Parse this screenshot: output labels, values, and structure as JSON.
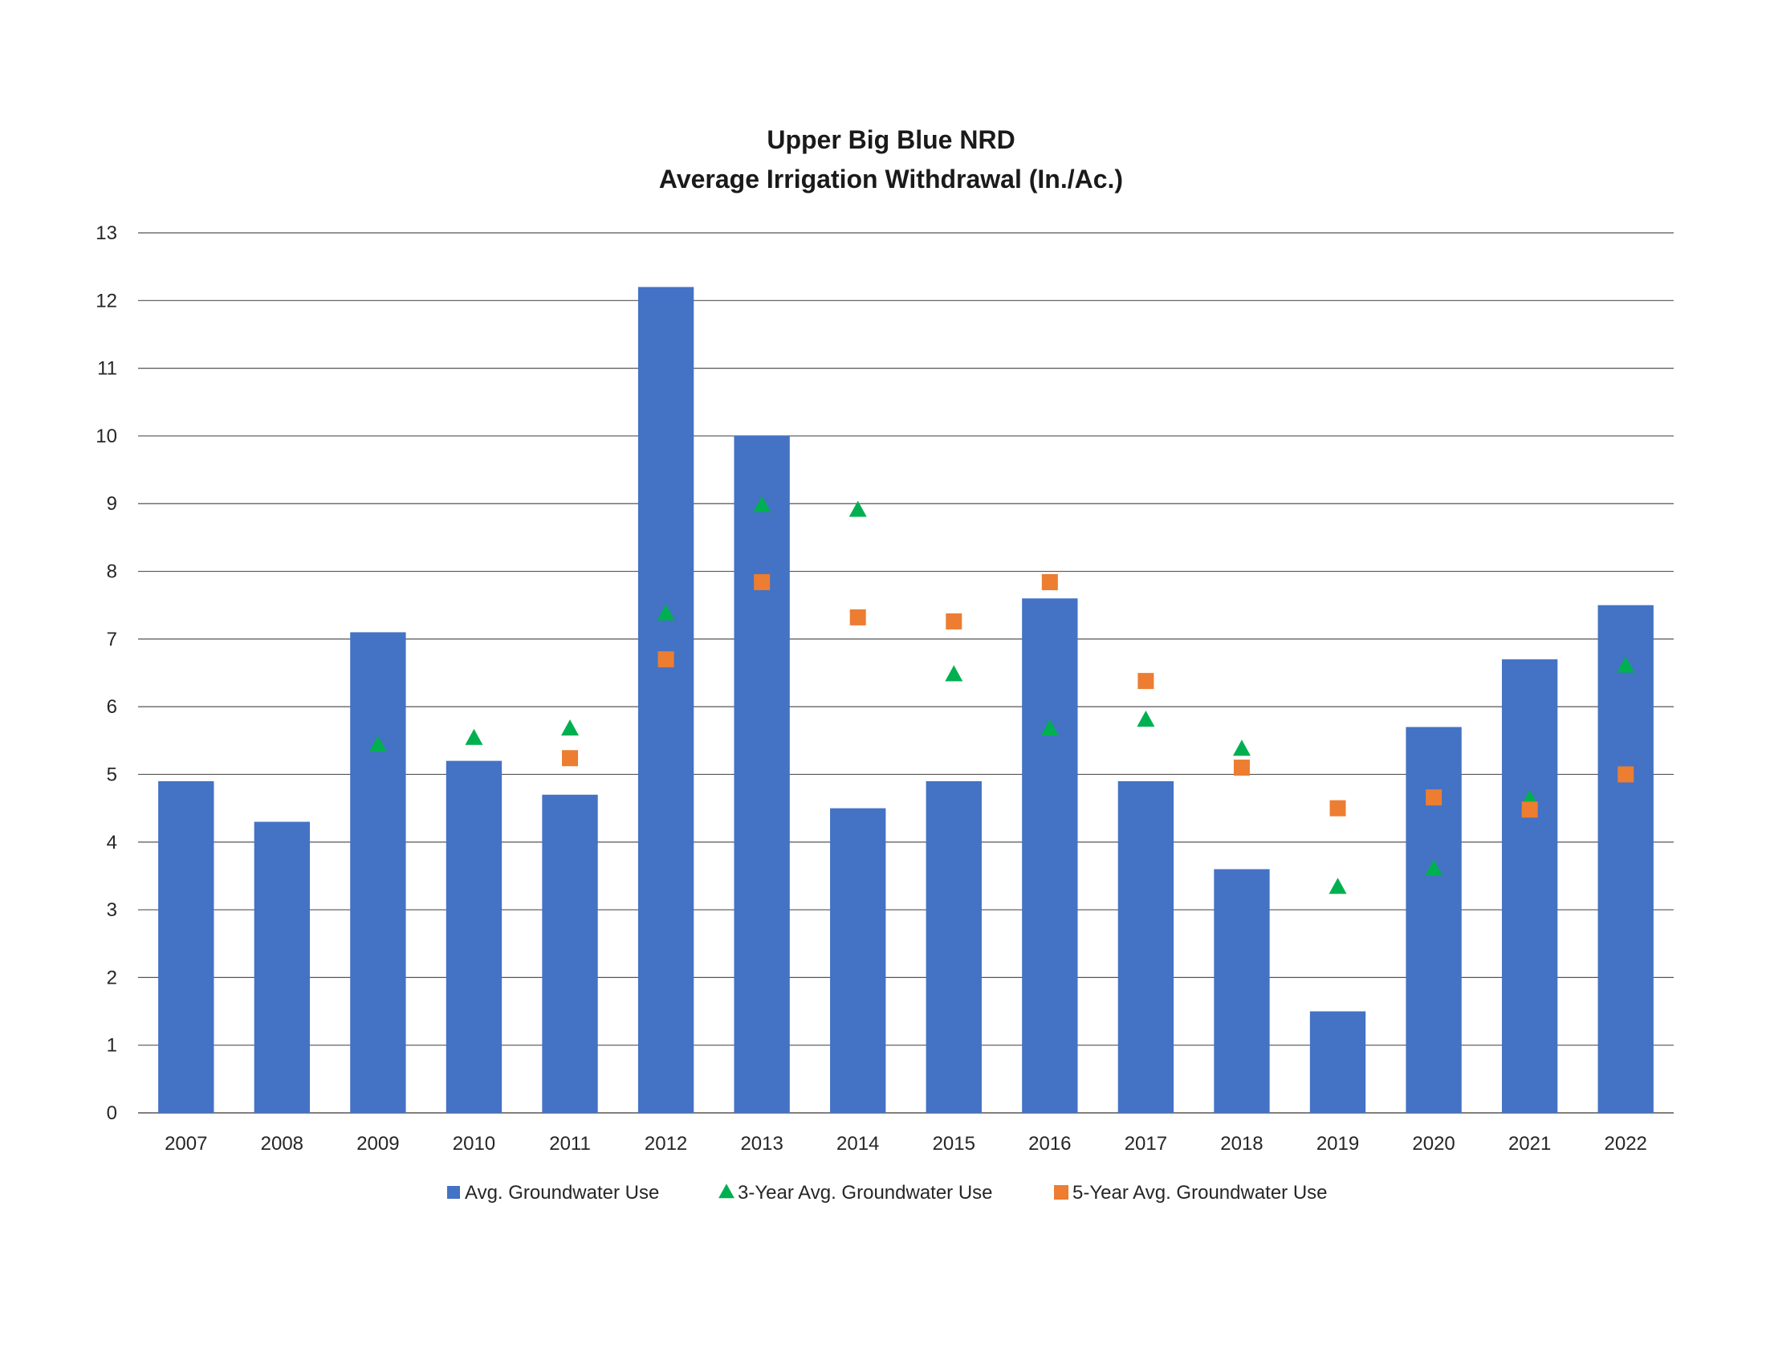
{
  "chart_data": {
    "type": "bar",
    "title_lines": [
      "Upper Big Blue NRD",
      "Average Irrigation Withdrawal (In./Ac.)"
    ],
    "xlabel": "",
    "ylabel": "",
    "ylim": [
      0,
      13
    ],
    "yticks": [
      "0",
      "1",
      "2",
      "3",
      "4",
      "5",
      "6",
      "7",
      "8",
      "9",
      "10",
      "11",
      "12",
      "13"
    ],
    "grid": true,
    "legend_position": "bottom",
    "categories": [
      "2007",
      "2008",
      "2009",
      "2010",
      "2011",
      "2012",
      "2013",
      "2014",
      "2015",
      "2016",
      "2017",
      "2018",
      "2019",
      "2020",
      "2021",
      "2022"
    ],
    "series": [
      {
        "name": "Avg. Groundwater Use",
        "kind": "bar",
        "marker": "square",
        "color": "#4472C4",
        "values": [
          4.9,
          4.3,
          7.1,
          5.2,
          4.7,
          12.2,
          10.0,
          4.5,
          4.9,
          7.6,
          4.9,
          3.6,
          1.5,
          5.7,
          6.7,
          7.5
        ]
      },
      {
        "name": "3-Year Avg. Groundwater Use",
        "kind": "scatter",
        "marker": "triangle",
        "color": "#00B050",
        "values": [
          null,
          null,
          5.43,
          5.53,
          5.67,
          7.37,
          8.97,
          8.9,
          6.47,
          5.67,
          5.8,
          5.37,
          3.33,
          3.6,
          4.63,
          6.6
        ]
      },
      {
        "name": "5-Year Avg. Groundwater Use",
        "kind": "scatter",
        "marker": "square",
        "color": "#ED7D31",
        "values": [
          null,
          null,
          null,
          null,
          5.24,
          6.7,
          7.84,
          7.32,
          7.26,
          7.84,
          6.38,
          5.1,
          4.5,
          4.66,
          4.48,
          5.0
        ]
      }
    ]
  }
}
